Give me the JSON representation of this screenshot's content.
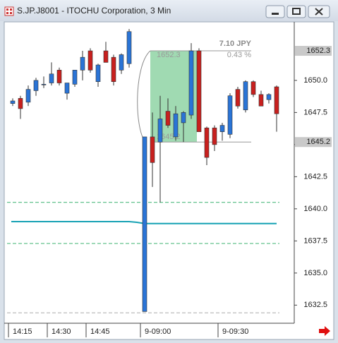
{
  "chart_data": {
    "type": "candlestick",
    "title": "S.JP.J8001 - ITOCHU Corporation, 3 Min",
    "categories": [
      "14:15",
      null,
      null,
      null,
      null,
      "14:30",
      null,
      null,
      null,
      null,
      "14:45",
      null,
      null,
      null,
      null,
      null,
      null,
      "9-09:00",
      null,
      null,
      null,
      null,
      null,
      null,
      null,
      null,
      null,
      "9-09:30",
      null,
      null,
      null,
      null,
      null,
      null,
      null
    ],
    "open": [
      1648.2,
      1648.6,
      1648.3,
      1649.2,
      1649.7,
      1649.8,
      1650.8,
      1649.0,
      1649.7,
      1650.8,
      1652.3,
      1649.9,
      1652.3,
      1651.8,
      1650.8,
      1651.3,
      null,
      1632.0,
      1645.6,
      1645.2,
      1647.6,
      1645.6,
      1646.7,
      1647.3,
      1652.3,
      1646.3,
      1646.3,
      1646.0,
      1645.8,
      1649.3,
      1647.7,
      1649.9,
      1648.9,
      1648.5,
      1649.5
    ],
    "high": [
      1648.6,
      1648.8,
      1649.6,
      1650.2,
      1650.3,
      1651.4,
      1651.0,
      1649.8,
      1650.8,
      1652.3,
      1652.5,
      1651.3,
      1653.0,
      1652.0,
      1652.1,
      1654.0,
      null,
      1645.6,
      1647.5,
      1648.8,
      1648.6,
      1648.0,
      1647.6,
      1652.9,
      1652.5,
      1646.4,
      1646.5,
      1646.7,
      1649.0,
      1649.5,
      1650.0,
      1650.0,
      1649.2,
      1649.0,
      1649.6
    ],
    "low": [
      1648.0,
      1647.0,
      1648.0,
      1648.8,
      1649.4,
      1649.6,
      1649.6,
      1648.5,
      1649.5,
      1650.0,
      1650.6,
      1649.5,
      1651.4,
      1649.6,
      1650.5,
      1651.0,
      null,
      1632.0,
      1641.7,
      1640.5,
      1646.3,
      1645.3,
      1645.2,
      1647.0,
      1646.0,
      1643.4,
      1644.5,
      1645.3,
      1645.5,
      1647.8,
      1647.5,
      1648.7,
      1648.0,
      1648.2,
      1646.0
    ],
    "close": [
      1648.4,
      1647.8,
      1649.3,
      1650.0,
      1649.7,
      1650.5,
      1649.8,
      1649.8,
      1650.8,
      1651.8,
      1650.8,
      1651.2,
      1651.4,
      1649.9,
      1652.0,
      1653.8,
      null,
      1645.6,
      1643.6,
      1647.0,
      1646.5,
      1647.4,
      1647.5,
      1652.3,
      1646.0,
      1644.0,
      1645.0,
      1646.5,
      1648.8,
      1648.0,
      1649.9,
      1648.9,
      1648.0,
      1648.9,
      1647.4
    ],
    "up_color": "#2a74d6",
    "down_color": "#c8201e",
    "middle_line": {
      "color": "#17a2b4",
      "values": [
        1639.0,
        1639.0,
        1639.0,
        1639.0,
        1639.0,
        1639.0,
        1639.0,
        1639.0,
        1639.0,
        1639.0,
        1639.0,
        1639.0,
        1639.0,
        1639.0,
        1639.0,
        1639.0,
        1638.95,
        1638.85,
        1638.85,
        1638.85,
        1638.85,
        1638.85,
        1638.85,
        1638.85,
        1638.85,
        1638.85,
        1638.85,
        1638.85,
        1638.85,
        1638.85,
        1638.85,
        1638.85,
        1638.85,
        1638.85,
        1638.85
      ]
    },
    "band_lines": [
      {
        "value": 1640.5,
        "color": "#3cb371"
      },
      {
        "value": 1637.3,
        "color": "#3cb371"
      },
      {
        "value": 1631.9,
        "color": "#aaaaaa"
      }
    ],
    "measure": {
      "high": 1652.3,
      "low": 1645.2,
      "change": "7.10 JPY",
      "percent": "0.43 %",
      "color": "#8fd4a4"
    },
    "ylim": [
      1631.2,
      1654.5
    ],
    "yticks": [
      {
        "value": 1632.5,
        "label": "1632.5"
      },
      {
        "value": 1635,
        "label": "1635.0"
      },
      {
        "value": 1637.5,
        "label": "1637.5"
      },
      {
        "value": 1640,
        "label": "1640.0"
      },
      {
        "value": 1642.5,
        "label": "1642.5"
      },
      {
        "value": 1645,
        "label": "1645.0"
      },
      {
        "value": 1647.5,
        "label": "1647.5"
      },
      {
        "value": 1650,
        "label": "1650.0"
      }
    ]
  }
}
